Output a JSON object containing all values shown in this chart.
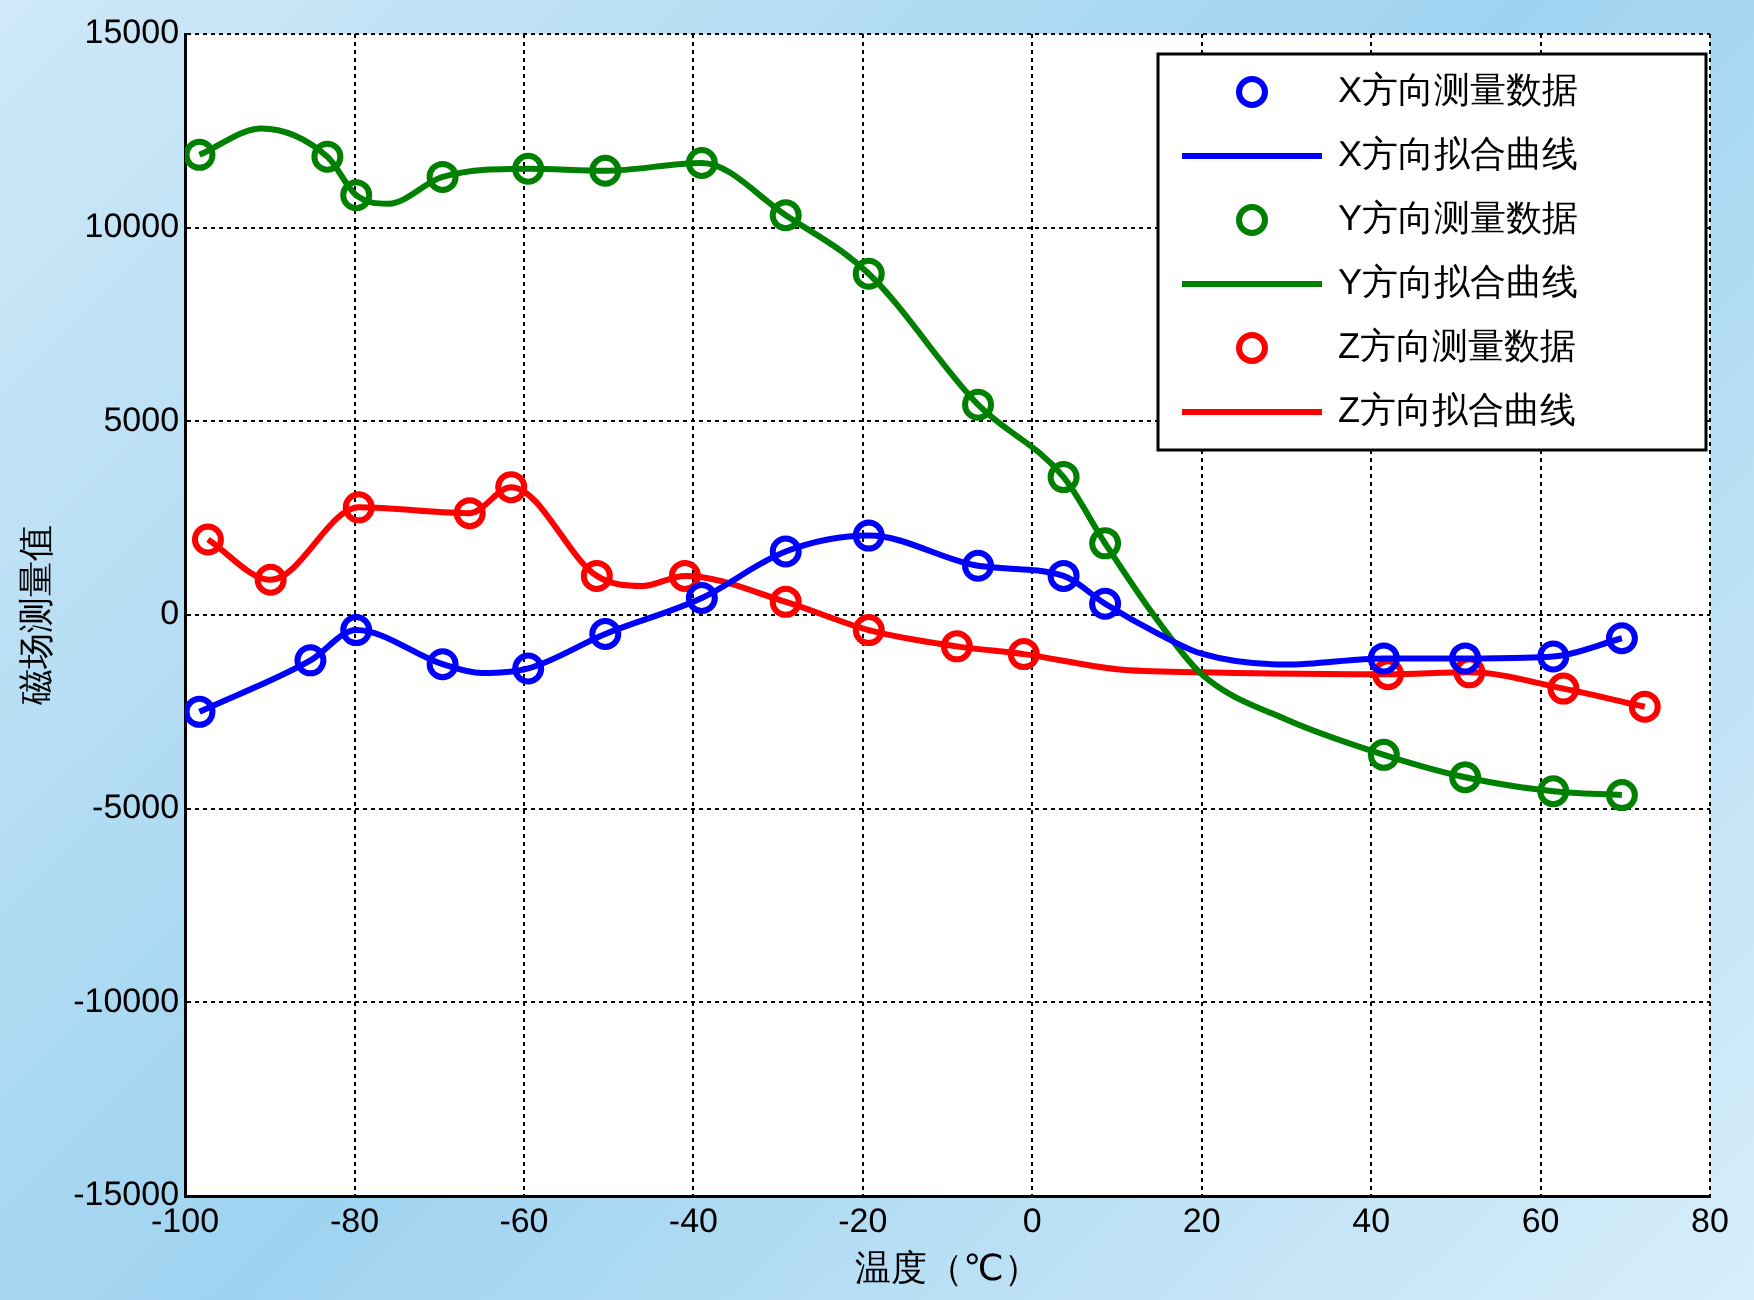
{
  "chart_data": {
    "type": "scatter",
    "xlabel": "温度（℃）",
    "ylabel": "磁场测量值",
    "xlim": [
      -100,
      80
    ],
    "xticks": [
      -100,
      -80,
      -60,
      -40,
      -20,
      0,
      20,
      40,
      60,
      80
    ],
    "ylim": [
      -15000,
      15000
    ],
    "yticks": [
      -15000,
      -10000,
      -5000,
      0,
      5000,
      10000,
      15000
    ],
    "grid": true,
    "legend": "top right",
    "series": [
      {
        "name": "X方向测量数据",
        "type": "scatter",
        "marker": "circle",
        "color": "#0000ff",
        "x": [
          -98.3,
          -85.2,
          -79.8,
          -69.6,
          -59.5,
          -50.4,
          -39,
          -29.1,
          -19.3,
          -6.4,
          3.7,
          8.6,
          41.5,
          51.1,
          61.5,
          69.6
        ],
        "values": [
          -2500,
          -1170,
          -390,
          -1270,
          -1380,
          -490,
          440,
          1640,
          2050,
          1270,
          1010,
          290,
          -1120,
          -1120,
          -1070,
          -600
        ]
      },
      {
        "name": "X方向拟合曲线",
        "type": "line",
        "marker": "none",
        "line_style": "solid",
        "color": "#0000ff",
        "x": [
          -98.3,
          -85.2,
          -79.8,
          -69.6,
          -65,
          -59.5,
          -50.4,
          -39,
          -29.1,
          -19.3,
          -6.4,
          3.7,
          8.6,
          15,
          20,
          30,
          41.5,
          51.1,
          61.5,
          69.6
        ],
        "values": [
          -2500,
          -1170,
          -390,
          -1270,
          -1500,
          -1380,
          -490,
          440,
          1640,
          2050,
          1270,
          1010,
          290,
          -500,
          -1000,
          -1280,
          -1120,
          -1120,
          -1070,
          -600
        ]
      },
      {
        "name": "Y方向测量数据",
        "type": "scatter",
        "marker": "circle",
        "color": "#008000",
        "x": [
          -98.3,
          -83.2,
          -79.8,
          -69.6,
          -59.5,
          -50.4,
          -39,
          -29.1,
          -19.3,
          -6.4,
          3.7,
          8.6,
          41.5,
          51.1,
          61.5,
          69.6
        ],
        "values": [
          11880,
          11830,
          10840,
          11310,
          11520,
          11470,
          11670,
          10320,
          8810,
          5430,
          3560,
          1850,
          -3610,
          -4190,
          -4550,
          -4650
        ]
      },
      {
        "name": "Y方向拟合曲线",
        "type": "line",
        "marker": "none",
        "line_style": "solid",
        "color": "#008000",
        "x": [
          -98.3,
          -91,
          -83.2,
          -79.8,
          -76,
          -69.6,
          -59.5,
          -50.4,
          -39,
          -29.1,
          -19.3,
          -6.4,
          3.7,
          8.6,
          15,
          20,
          30,
          41.5,
          51.1,
          61.5,
          69.6
        ],
        "values": [
          11880,
          12560,
          11830,
          10840,
          10620,
          11310,
          11520,
          11470,
          11670,
          10320,
          8810,
          5430,
          3560,
          1850,
          -200,
          -1530,
          -2700,
          -3610,
          -4190,
          -4550,
          -4650
        ]
      },
      {
        "name": "Z方向测量数据",
        "type": "scatter",
        "marker": "circle",
        "color": "#ff0000",
        "x": [
          -97.3,
          -89.9,
          -79.5,
          -66.4,
          -61.5,
          -51.4,
          -41,
          -29.1,
          -19.3,
          -8.9,
          -1,
          42,
          51.6,
          62.7,
          72.3
        ],
        "values": [
          1950,
          910,
          2780,
          2630,
          3300,
          1010,
          1010,
          340,
          -390,
          -810,
          -1010,
          -1530,
          -1480,
          -1900,
          -2370
        ]
      },
      {
        "name": "Z方向拟合曲线",
        "type": "line",
        "marker": "none",
        "line_style": "solid",
        "color": "#ff0000",
        "x": [
          -97.3,
          -89.9,
          -79.5,
          -66.4,
          -61.5,
          -51.4,
          -46,
          -41,
          -29.1,
          -19.3,
          -8.9,
          -1,
          10,
          20,
          42,
          51.6,
          62.7,
          72.3
        ],
        "values": [
          1950,
          910,
          2780,
          2630,
          3300,
          1010,
          750,
          1010,
          340,
          -390,
          -810,
          -1010,
          -1400,
          -1480,
          -1530,
          -1480,
          -1900,
          -2370
        ]
      }
    ]
  }
}
